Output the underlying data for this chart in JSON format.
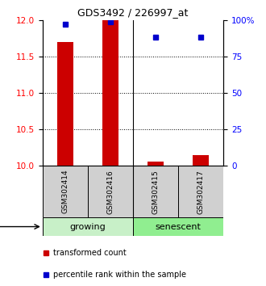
{
  "title": "GDS3492 / 226997_at",
  "samples": [
    "GSM302414",
    "GSM302416",
    "GSM302415",
    "GSM302417"
  ],
  "red_values": [
    11.7,
    12.0,
    10.06,
    10.15
  ],
  "blue_values": [
    97,
    99,
    88,
    88
  ],
  "ylim_left": [
    10,
    12
  ],
  "ylim_right": [
    0,
    100
  ],
  "yticks_left": [
    10,
    10.5,
    11,
    11.5,
    12
  ],
  "yticks_right": [
    0,
    25,
    50,
    75,
    100
  ],
  "yticklabels_right": [
    "0",
    "25",
    "50",
    "75",
    "100%"
  ],
  "bar_color": "#CC0000",
  "dot_color": "#0000CC",
  "bar_width": 0.35,
  "growing_color": "#c8f0c8",
  "senescent_color": "#90ee90",
  "sample_box_color": "#d0d0d0",
  "legend_red": "transformed count",
  "legend_blue": "percentile rank within the sample",
  "title_fontsize": 9,
  "tick_fontsize": 7.5,
  "sample_fontsize": 6.5,
  "group_fontsize": 8,
  "legend_fontsize": 7
}
